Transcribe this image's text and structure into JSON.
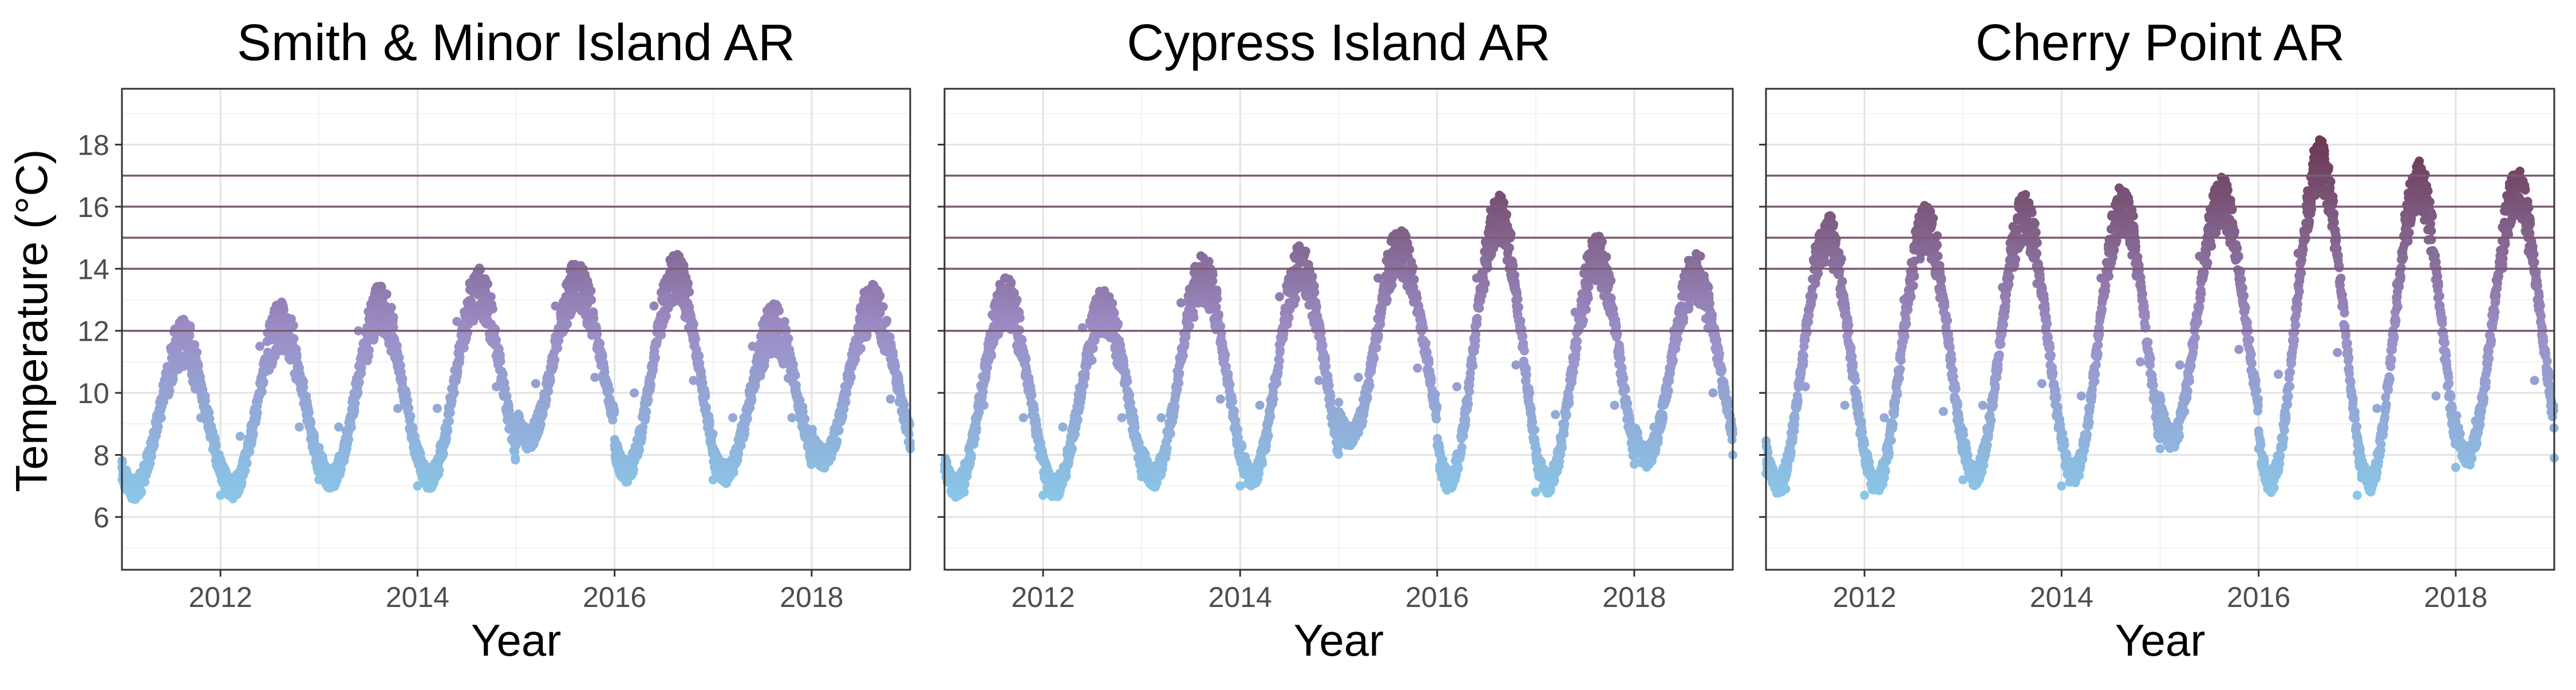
{
  "figure": {
    "ylabel": "Temperature (°C)",
    "xlabel": "Year"
  },
  "chart_data": [
    {
      "type": "scatter",
      "title": "Smith & Minor Island AR",
      "xlabel": "Year",
      "ylabel": "Temperature (°C)",
      "xlim": [
        2011.0,
        2019.0
      ],
      "ylim": [
        4.3,
        19.8
      ],
      "x_ticks": [
        "2012",
        "2014",
        "2016",
        "2018"
      ],
      "y_ticks": [
        "6",
        "8",
        "10",
        "12",
        "14",
        "16",
        "18"
      ],
      "threshold_lines": [
        12,
        14,
        15,
        16,
        17
      ],
      "grid": true,
      "legend": "none",
      "color_low": "#87CEEB",
      "color_mid": "#9B8EC7",
      "color_high": "#6B3A55",
      "series": [
        {
          "x": [
            2011.0,
            2011.2,
            2011.4,
            2011.6,
            2011.8,
            2012.0,
            2012.2,
            2012.4,
            2012.6,
            2012.8,
            2013.0,
            2013.2,
            2013.4,
            2013.6,
            2013.8,
            2014.0,
            2014.2,
            2014.4,
            2014.6,
            2014.8,
            2015.0,
            2015.2,
            2015.4,
            2015.6,
            2015.8,
            2016.0,
            2016.2,
            2016.4,
            2016.6,
            2016.8,
            2017.0,
            2017.2,
            2017.4,
            2017.6,
            2017.8,
            2018.0,
            2018.2,
            2018.4,
            2018.6,
            2018.8,
            2019.0
          ],
          "y": [
            7.6,
            6.8,
            9.2,
            11.8,
            9.2,
            6.7,
            8.6,
            11.5,
            12.4,
            8.9,
            7.2,
            8.9,
            12.0,
            12.9,
            9.5,
            7.0,
            9.5,
            12.3,
            13.5,
            10.2,
            8.3,
            10.3,
            12.8,
            13.7,
            10.5,
            8.3,
            10.0,
            12.8,
            14.0,
            10.4,
            7.2,
            9.2,
            11.5,
            12.3,
            9.2,
            7.7,
            8.5,
            11.0,
            13.0,
            9.8,
            8.2
          ]
        }
      ]
    },
    {
      "type": "scatter",
      "title": "Cypress Island AR",
      "xlabel": "Year",
      "ylabel": "",
      "xlim": [
        2011.0,
        2019.0
      ],
      "ylim": [
        4.3,
        19.8
      ],
      "x_ticks": [
        "2012",
        "2014",
        "2016",
        "2018"
      ],
      "y_ticks": [],
      "threshold_lines": [
        12,
        14,
        15,
        16,
        17
      ],
      "grid": true,
      "legend": "none",
      "color_low": "#87CEEB",
      "color_mid": "#9B8EC7",
      "color_high": "#6B3A55",
      "series": [
        {
          "x": [
            2011.0,
            2011.2,
            2011.4,
            2011.6,
            2011.8,
            2012.0,
            2012.2,
            2012.4,
            2012.6,
            2012.8,
            2013.0,
            2013.2,
            2013.4,
            2013.6,
            2013.8,
            2014.0,
            2014.2,
            2014.4,
            2014.6,
            2014.8,
            2015.0,
            2015.2,
            2015.4,
            2015.6,
            2015.8,
            2016.0,
            2016.2,
            2016.4,
            2016.6,
            2016.8,
            2017.0,
            2017.2,
            2017.4,
            2017.6,
            2017.8,
            2018.0,
            2018.2,
            2018.4,
            2018.6,
            2018.8,
            2019.0
          ],
          "y": [
            7.5,
            6.8,
            9.6,
            13.2,
            9.2,
            6.7,
            8.9,
            12.1,
            12.9,
            9.2,
            7.3,
            9.2,
            12.9,
            14.0,
            9.8,
            7.0,
            9.6,
            13.1,
            14.3,
            10.4,
            8.3,
            10.5,
            13.7,
            14.8,
            10.8,
            8.3,
            10.2,
            13.7,
            16.0,
            10.9,
            6.8,
            9.3,
            12.6,
            14.6,
            9.6,
            7.7,
            8.9,
            12.0,
            14.0,
            10.0,
            8.0
          ]
        }
      ]
    },
    {
      "type": "scatter",
      "title": "Cherry Point AR",
      "xlabel": "Year",
      "ylabel": "",
      "xlim": [
        2011.0,
        2019.0
      ],
      "ylim": [
        4.3,
        19.8
      ],
      "x_ticks": [
        "2012",
        "2014",
        "2016",
        "2018"
      ],
      "y_ticks": [],
      "threshold_lines": [
        12,
        14,
        15,
        16,
        17
      ],
      "grid": true,
      "legend": "none",
      "color_low": "#87CEEB",
      "color_mid": "#9B8EC7",
      "color_high": "#6B3A55",
      "series": [
        {
          "x": [
            2011.0,
            2011.2,
            2011.4,
            2011.6,
            2011.8,
            2012.0,
            2012.2,
            2012.4,
            2012.6,
            2012.8,
            2013.0,
            2013.2,
            2013.4,
            2013.6,
            2013.8,
            2014.0,
            2014.2,
            2014.4,
            2014.6,
            2014.8,
            2015.0,
            2015.2,
            2015.4,
            2015.6,
            2015.8,
            2016.0,
            2016.2,
            2016.4,
            2016.6,
            2016.8,
            2017.0,
            2017.2,
            2017.4,
            2017.6,
            2017.8,
            2018.0,
            2018.2,
            2018.4,
            2018.6,
            2018.8,
            2019.0
          ],
          "y": [
            7.4,
            6.9,
            10.2,
            15.4,
            9.6,
            6.7,
            9.2,
            13.0,
            15.7,
            9.4,
            7.2,
            9.6,
            13.4,
            16.0,
            10.3,
            7.0,
            9.9,
            13.7,
            16.3,
            11.0,
            8.2,
            10.9,
            14.4,
            16.5,
            11.4,
            8.2,
            10.6,
            14.5,
            17.8,
            11.3,
            6.7,
            9.5,
            13.5,
            17.1,
            9.9,
            7.6,
            9.1,
            12.9,
            16.8,
            10.4,
            7.9
          ]
        }
      ]
    }
  ]
}
